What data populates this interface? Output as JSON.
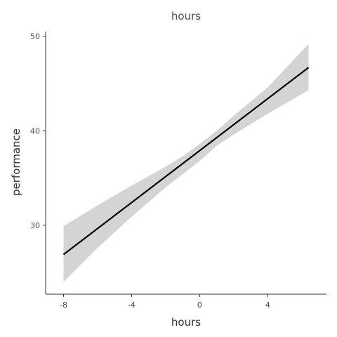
{
  "chart_data": {
    "type": "line",
    "title": "hours",
    "xlabel": "hours",
    "ylabel": "performance",
    "xlim": [
      -9.05,
      7.45
    ],
    "ylim": [
      22.7,
      50.5
    ],
    "xticks": [
      -8,
      -4,
      0,
      4
    ],
    "yticks": [
      30,
      40,
      50
    ],
    "grid": false,
    "legend": "none",
    "line": {
      "x": [
        -8,
        6.4
      ],
      "y": [
        26.9,
        46.7
      ]
    },
    "confidence_band": {
      "x": [
        -8,
        -6,
        -4,
        -2,
        -1,
        0,
        1,
        2,
        4,
        6.4
      ],
      "lower": [
        24.0,
        27.6,
        30.9,
        34.0,
        35.4,
        36.8,
        38.4,
        39.6,
        41.8,
        44.3
      ],
      "upper": [
        29.9,
        32.1,
        34.2,
        36.2,
        37.3,
        38.6,
        40.0,
        41.6,
        44.6,
        49.2
      ]
    },
    "colors": {
      "line": "#000000",
      "band": "#d4d4d4",
      "axis": "#333333"
    }
  }
}
